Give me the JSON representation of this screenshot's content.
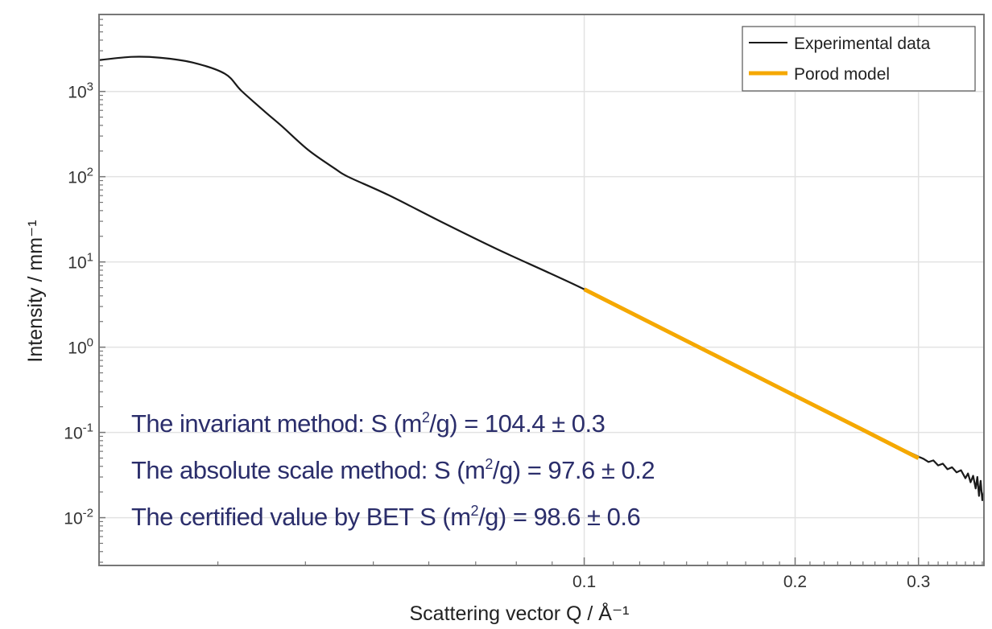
{
  "chart_data": {
    "type": "line",
    "title": "",
    "xlabel": "Scattering vector Q / Å⁻¹",
    "ylabel": "Intensity / mm⁻¹",
    "xscale": "log",
    "yscale": "log",
    "xlim": [
      0.0203,
      0.372
    ],
    "ylim": [
      0.00275,
      8000
    ],
    "grid": true,
    "legend_position": "top-right",
    "x_ticks": [
      {
        "value": 0.1,
        "label": "0.1"
      },
      {
        "value": 0.2,
        "label": "0.2"
      },
      {
        "value": 0.3,
        "label": "0.3"
      }
    ],
    "y_ticks": [
      {
        "value": 1000,
        "base": "10",
        "exp": "3"
      },
      {
        "value": 100,
        "base": "10",
        "exp": "2"
      },
      {
        "value": 10,
        "base": "10",
        "exp": "1"
      },
      {
        "value": 1,
        "base": "10",
        "exp": "0"
      },
      {
        "value": 0.1,
        "base": "10",
        "exp": "-1"
      },
      {
        "value": 0.01,
        "base": "10",
        "exp": "-2"
      }
    ],
    "series": [
      {
        "name": "Experimental data",
        "color": "#1a1a1a",
        "x": [
          0.0203,
          0.0226,
          0.0248,
          0.0276,
          0.0307,
          0.0324,
          0.0351,
          0.037,
          0.0404,
          0.0441,
          0.046,
          0.0526,
          0.0628,
          0.075,
          0.0893,
          0.1,
          0.12,
          0.15,
          0.2,
          0.25,
          0.28,
          0.3,
          0.305,
          0.31,
          0.315,
          0.32,
          0.325,
          0.33,
          0.335,
          0.34,
          0.345,
          0.35,
          0.353,
          0.356,
          0.359,
          0.362,
          0.364,
          0.366,
          0.368,
          0.37,
          0.372
        ],
        "y": [
          2333,
          2547,
          2490,
          2188,
          1614,
          1021,
          569,
          393,
          205,
          124,
          100,
          60.7,
          29.0,
          14.2,
          7.38,
          4.78,
          2.25,
          0.889,
          0.269,
          0.107,
          0.068,
          0.052,
          0.049,
          0.045,
          0.047,
          0.041,
          0.043,
          0.037,
          0.039,
          0.034,
          0.036,
          0.029,
          0.033,
          0.026,
          0.031,
          0.022,
          0.03,
          0.018,
          0.027,
          0.016,
          0.02
        ]
      },
      {
        "name": "Porod model",
        "color": "#f5a800",
        "x": [
          0.1,
          0.15,
          0.2,
          0.25,
          0.3
        ],
        "y": [
          4.78,
          0.889,
          0.269,
          0.107,
          0.0499
        ]
      }
    ],
    "annotations": [
      {
        "prefix": "The invariant method: S (m",
        "sup": "2",
        "suffix": "/g) = 104.4 ± 0.3"
      },
      {
        "prefix": "The absolute scale method: S (m",
        "sup": "2",
        "suffix": "/g) = 97.6 ± 0.2"
      },
      {
        "prefix": "The certified value by BET S (m",
        "sup": "2",
        "suffix": "/g) = 98.6 ± 0.6"
      }
    ]
  }
}
